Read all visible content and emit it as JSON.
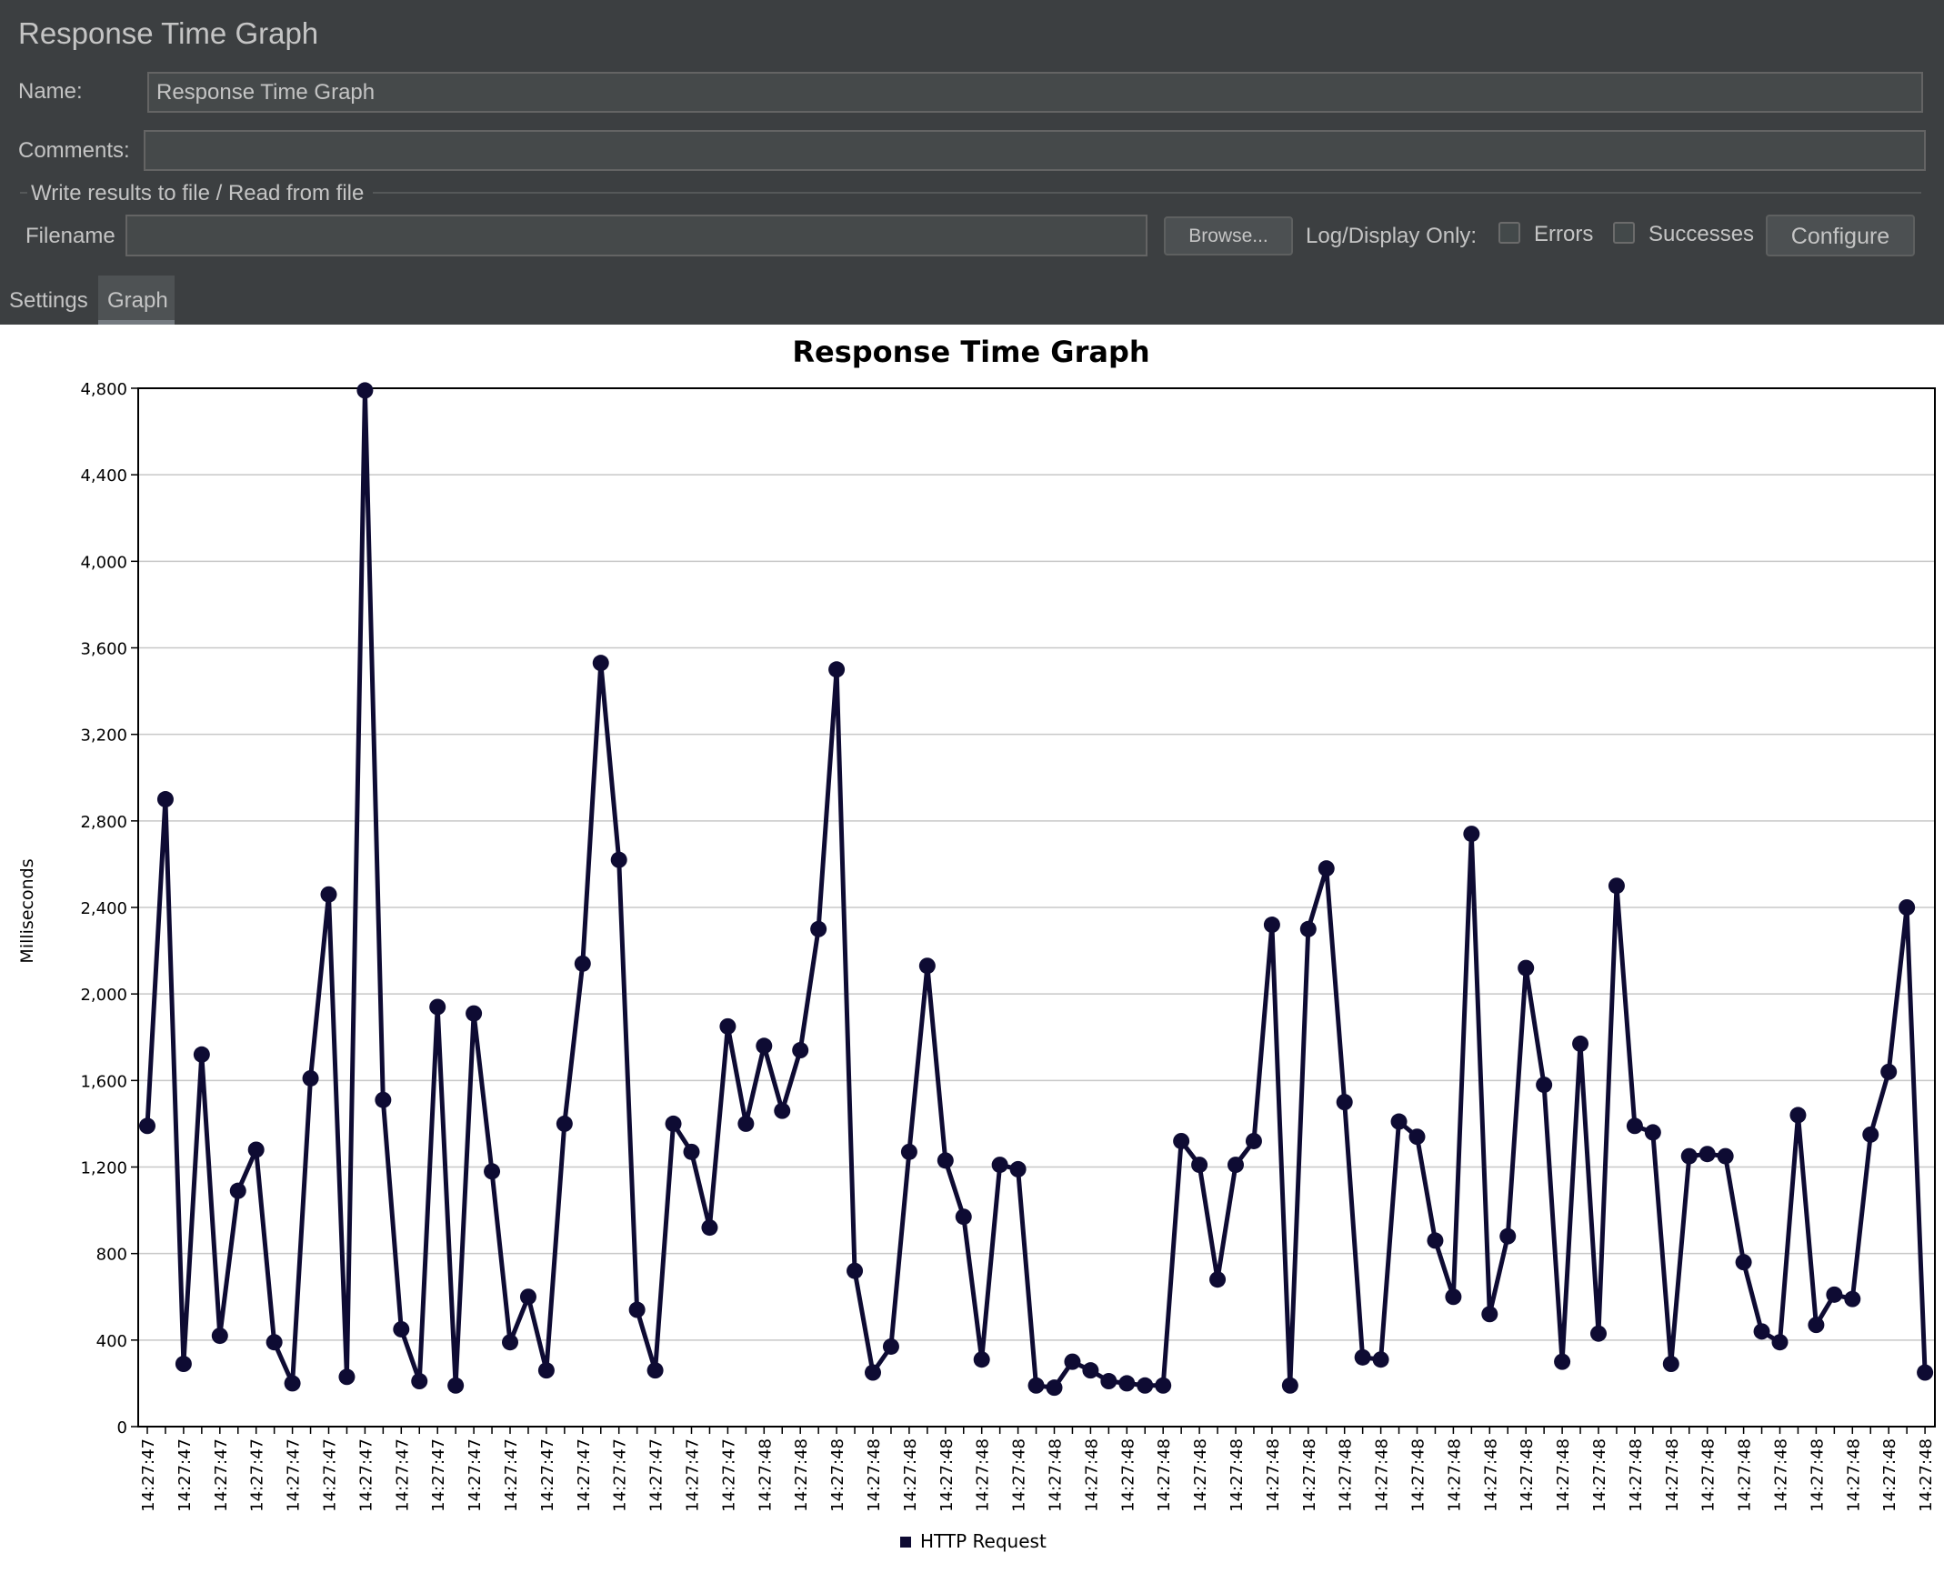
{
  "panel": {
    "title": "Response Time Graph",
    "name_label": "Name:",
    "name_value": "Response Time Graph",
    "comments_label": "Comments:",
    "comments_value": "",
    "file_group_label": "Write results to file / Read from file",
    "filename_label": "Filename",
    "filename_value": "",
    "browse_label": "Browse...",
    "log_display_label": "Log/Display Only:",
    "errors_label": "Errors",
    "errors_checked": false,
    "successes_label": "Successes",
    "successes_checked": false,
    "configure_label": "Configure"
  },
  "tabs": [
    {
      "label": "Settings",
      "active": false
    },
    {
      "label": "Graph",
      "active": true
    }
  ],
  "colors": {
    "panel_bg": "#3c3f41",
    "series": "#0e0b33",
    "grid": "#c8c8c8"
  },
  "chart_data": {
    "type": "line",
    "title": "Response Time Graph",
    "ylabel": "Milliseconds",
    "xlabel": "",
    "ylim": [
      0,
      4800
    ],
    "yticks": [
      0,
      400,
      800,
      1200,
      1600,
      2000,
      2400,
      2800,
      3200,
      3600,
      4000,
      4400,
      4800
    ],
    "ytick_labels": [
      "0",
      "400",
      "800",
      "1,200",
      "1,600",
      "2,000",
      "2,400",
      "2,800",
      "3,200",
      "3,600",
      "4,000",
      "4,400",
      "4,800"
    ],
    "grid": true,
    "legend_position": "bottom-center",
    "x_tick_labels": [
      "14:27:47",
      "14:27:47",
      "14:27:47",
      "14:27:47",
      "14:27:47",
      "14:27:47",
      "14:27:47",
      "14:27:47",
      "14:27:47",
      "14:27:47",
      "14:27:47",
      "14:27:47",
      "14:27:47",
      "14:27:47",
      "14:27:47",
      "14:27:47",
      "14:27:47",
      "14:27:48",
      "14:27:48",
      "14:27:48",
      "14:27:48",
      "14:27:48",
      "14:27:48",
      "14:27:48",
      "14:27:48",
      "14:27:48",
      "14:27:48",
      "14:27:48",
      "14:27:48",
      "14:27:48",
      "14:27:48",
      "14:27:48",
      "14:27:48",
      "14:27:48",
      "14:27:48",
      "14:27:48",
      "14:27:48",
      "14:27:48",
      "14:27:48",
      "14:27:48",
      "14:27:48",
      "14:27:48",
      "14:27:48",
      "14:27:48",
      "14:27:48",
      "14:27:48",
      "14:27:48",
      "14:27:48",
      "14:27:48",
      "14:27:48"
    ],
    "series": [
      {
        "name": "HTTP Request",
        "values": [
          1390,
          2900,
          290,
          1720,
          420,
          1090,
          1280,
          390,
          200,
          1610,
          2460,
          230,
          4790,
          1510,
          450,
          210,
          1940,
          190,
          1910,
          1180,
          390,
          600,
          260,
          1400,
          2140,
          3530,
          2620,
          540,
          260,
          1400,
          1270,
          920,
          1850,
          1400,
          1760,
          1460,
          1740,
          2300,
          3500,
          720,
          250,
          370,
          1270,
          2130,
          1230,
          970,
          310,
          1210,
          1190,
          190,
          180,
          300,
          260,
          210,
          200,
          190,
          190,
          1320,
          1210,
          680,
          1210,
          1320,
          2320,
          190,
          2300,
          2580,
          1500,
          320,
          310,
          1410,
          1340,
          860,
          600,
          2740,
          520,
          880,
          2120,
          1580,
          300,
          1770,
          430,
          2500,
          1390,
          1360,
          290,
          1250,
          1260,
          1250,
          760,
          440,
          390,
          1440,
          470,
          610,
          590,
          1350,
          1640,
          2400,
          250
        ]
      }
    ]
  }
}
